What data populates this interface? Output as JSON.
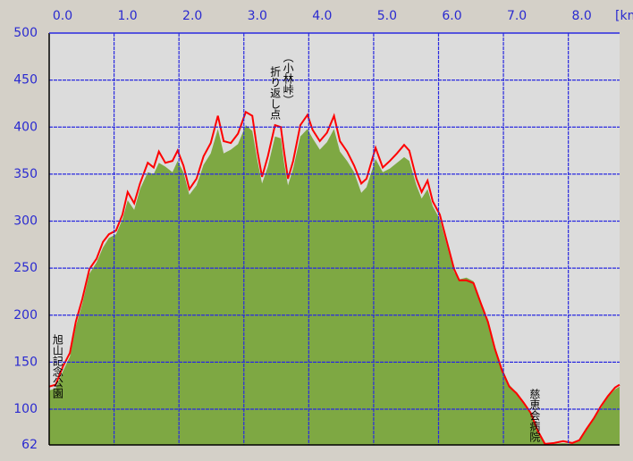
{
  "chart_data": {
    "type": "area",
    "xlabel": "[km]",
    "x": [
      0,
      0.1,
      0.21,
      0.32,
      0.41,
      0.51,
      0.62,
      0.73,
      0.83,
      0.92,
      1.03,
      1.13,
      1.21,
      1.31,
      1.4,
      1.52,
      1.61,
      1.69,
      1.79,
      1.9,
      1.98,
      2.07,
      2.16,
      2.27,
      2.38,
      2.49,
      2.6,
      2.69,
      2.8,
      2.91,
      3.03,
      3.13,
      3.21,
      3.28,
      3.37,
      3.48,
      3.57,
      3.62,
      3.68,
      3.76,
      3.87,
      3.98,
      4.06,
      4.17,
      4.28,
      4.39,
      4.48,
      4.59,
      4.7,
      4.81,
      4.89,
      5.03,
      5.14,
      5.25,
      5.36,
      5.47,
      5.55,
      5.66,
      5.74,
      5.83,
      5.91,
      6.02,
      6.13,
      6.24,
      6.32,
      6.43,
      6.54,
      6.65,
      6.76,
      6.87,
      6.98,
      7.09,
      7.2,
      7.31,
      7.42,
      7.53,
      7.64,
      7.78,
      7.92,
      8.06,
      8.17,
      8.28,
      8.39,
      8.5,
      8.61,
      8.72,
      8.79
    ],
    "series": [
      {
        "color": "#7ea843",
        "style": "area",
        "values": [
          120,
          122,
          140,
          156,
          188,
          212,
          244,
          256,
          272,
          282,
          286,
          302,
          322,
          312,
          334,
          352,
          350,
          362,
          358,
          352,
          364,
          352,
          328,
          338,
          360,
          372,
          398,
          372,
          376,
          382,
          402,
          396,
          364,
          340,
          358,
          390,
          388,
          362,
          338,
          356,
          390,
          398,
          388,
          376,
          384,
          398,
          374,
          364,
          352,
          330,
          336,
          366,
          352,
          356,
          362,
          368,
          364,
          338,
          324,
          334,
          316,
          302,
          274,
          246,
          238,
          240,
          236,
          214,
          194,
          166,
          144,
          126,
          118,
          106,
          95,
          76,
          62,
          63,
          64,
          63,
          66,
          78,
          89,
          101,
          113,
          121,
          124
        ]
      },
      {
        "color": "#ff0000",
        "style": "line",
        "values": [
          124,
          126,
          145,
          160,
          193,
          217,
          249,
          260,
          278,
          286,
          290,
          307,
          331,
          319,
          340,
          362,
          357,
          374,
          362,
          364,
          375,
          359,
          334,
          345,
          369,
          383,
          412,
          385,
          383,
          393,
          416,
          412,
          374,
          347,
          369,
          402,
          400,
          374,
          345,
          364,
          402,
          413,
          397,
          385,
          394,
          412,
          385,
          374,
          359,
          340,
          345,
          378,
          357,
          364,
          372,
          381,
          375,
          345,
          331,
          343,
          321,
          307,
          278,
          249,
          237,
          237,
          234,
          213,
          193,
          164,
          141,
          124,
          117,
          107,
          96,
          77,
          63,
          64,
          66,
          64,
          67,
          79,
          90,
          103,
          114,
          123,
          126
        ]
      }
    ],
    "xlim": [
      0,
      8.79
    ],
    "ylim": [
      62,
      500
    ],
    "xticks": [
      {
        "value": 0,
        "label": "0.0"
      },
      {
        "value": 1,
        "label": "1.0"
      },
      {
        "value": 2,
        "label": "2.0"
      },
      {
        "value": 3,
        "label": "3.0"
      },
      {
        "value": 4,
        "label": "4.0"
      },
      {
        "value": 5,
        "label": "5.0"
      },
      {
        "value": 6,
        "label": "6.0"
      },
      {
        "value": 7,
        "label": "7.0"
      },
      {
        "value": 8,
        "label": "8.0"
      }
    ],
    "yticks": [
      62,
      100,
      150,
      200,
      250,
      300,
      350,
      400,
      450,
      500
    ],
    "grid": true,
    "annotations": [
      {
        "text": "旭山記念公園",
        "x": 0.13,
        "y": 180
      },
      {
        "text": "（小林峠）",
        "x": 3.68,
        "y": 480
      },
      {
        "text": "折り返し点",
        "x": 3.48,
        "y": 465
      },
      {
        "text": "慈恵会病院",
        "x": 7.48,
        "y": 122
      }
    ]
  }
}
